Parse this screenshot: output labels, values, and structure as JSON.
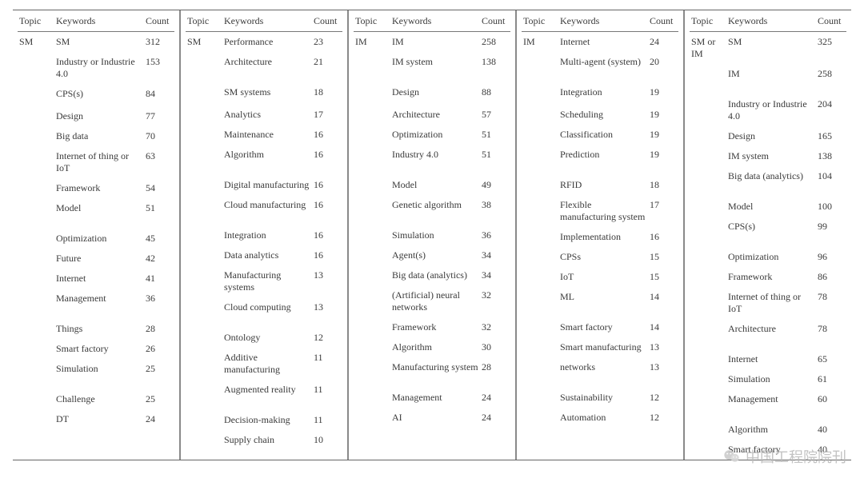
{
  "headers": {
    "topic": "Topic",
    "keywords": "Keywords",
    "count": "Count"
  },
  "style": {
    "background_color": "#ffffff",
    "text_color": "#3a3a3a",
    "rule_color": "#666666",
    "divider_color": "#8a8a8a",
    "font_family": "Times New Roman",
    "font_size_pt": 9
  },
  "columns": [
    {
      "topic": "SM",
      "rows": [
        {
          "k": "SM",
          "c": 312
        },
        {
          "k": "Industry or Industrie 4.0",
          "c": 153
        },
        {
          "k": "CPS(s)",
          "c": 84
        },
        {
          "k": "Design",
          "c": 77
        },
        {
          "k": "Big data",
          "c": 70
        },
        {
          "k": "Internet of thing or IoT",
          "c": 63
        },
        {
          "k": "Framework",
          "c": 54
        },
        {
          "k": "Model",
          "c": 51
        },
        {
          "k": "Optimization",
          "c": 45
        },
        {
          "k": "Future",
          "c": 42
        },
        {
          "k": "Internet",
          "c": 41
        },
        {
          "k": "Management",
          "c": 36
        },
        {
          "k": "Things",
          "c": 28
        },
        {
          "k": "Smart factory",
          "c": 26
        },
        {
          "k": "Simulation",
          "c": 25
        },
        {
          "k": "Challenge",
          "c": 25
        },
        {
          "k": "DT",
          "c": 24
        }
      ]
    },
    {
      "topic": "SM",
      "rows": [
        {
          "k": "Performance",
          "c": 23
        },
        {
          "k": "Architecture",
          "c": 21
        },
        {
          "k": "SM systems",
          "c": 18
        },
        {
          "k": "Analytics",
          "c": 17
        },
        {
          "k": "Maintenance",
          "c": 16
        },
        {
          "k": "Algorithm",
          "c": 16
        },
        {
          "k": "Digital manufacturing",
          "c": 16
        },
        {
          "k": "Cloud manufacturing",
          "c": 16
        },
        {
          "k": "Integration",
          "c": 16
        },
        {
          "k": "Data analytics",
          "c": 16
        },
        {
          "k": "Manufacturing systems",
          "c": 13
        },
        {
          "k": "Cloud computing",
          "c": 13
        },
        {
          "k": "Ontology",
          "c": 12
        },
        {
          "k": "Additive manufacturing",
          "c": 11
        },
        {
          "k": "Augmented reality",
          "c": 11
        },
        {
          "k": "Decision-making",
          "c": 11
        },
        {
          "k": "Supply chain",
          "c": 10
        }
      ]
    },
    {
      "topic": "IM",
      "rows": [
        {
          "k": "IM",
          "c": 258
        },
        {
          "k": "IM system",
          "c": 138
        },
        {
          "k": "Design",
          "c": 88
        },
        {
          "k": "Architecture",
          "c": 57
        },
        {
          "k": "Optimization",
          "c": 51
        },
        {
          "k": "Industry 4.0",
          "c": 51
        },
        {
          "k": "Model",
          "c": 49
        },
        {
          "k": "Genetic algorithm",
          "c": 38
        },
        {
          "k": "Simulation",
          "c": 36
        },
        {
          "k": "Agent(s)",
          "c": 34
        },
        {
          "k": "Big data (analytics)",
          "c": 34
        },
        {
          "k": "(Artificial) neural networks",
          "c": 32
        },
        {
          "k": "Framework",
          "c": 32
        },
        {
          "k": "Algorithm",
          "c": 30
        },
        {
          "k": "Manufacturing system",
          "c": 28
        },
        {
          "k": "Management",
          "c": 24
        },
        {
          "k": "AI",
          "c": 24
        }
      ]
    },
    {
      "topic": "IM",
      "rows": [
        {
          "k": "Internet",
          "c": 24
        },
        {
          "k": "Multi-agent (system)",
          "c": 20
        },
        {
          "k": "Integration",
          "c": 19
        },
        {
          "k": "Scheduling",
          "c": 19
        },
        {
          "k": "Classification",
          "c": 19
        },
        {
          "k": "Prediction",
          "c": 19
        },
        {
          "k": "RFID",
          "c": 18
        },
        {
          "k": "Flexible manufacturing system",
          "c": 17
        },
        {
          "k": "Implementation",
          "c": 16
        },
        {
          "k": "CPSs",
          "c": 15
        },
        {
          "k": "IoT",
          "c": 15
        },
        {
          "k": "ML",
          "c": 14
        },
        {
          "k": "Smart factory",
          "c": 14
        },
        {
          "k": "Smart manufacturing",
          "c": 13
        },
        {
          "k": "networks",
          "c": 13
        },
        {
          "k": "Sustainability",
          "c": 12
        },
        {
          "k": "Automation",
          "c": 12
        }
      ]
    },
    {
      "topic": "SM or IM",
      "rows": [
        {
          "k": "SM",
          "c": 325
        },
        {
          "k": "IM",
          "c": 258
        },
        {
          "k": "Industry or Industrie 4.0",
          "c": 204
        },
        {
          "k": "Design",
          "c": 165
        },
        {
          "k": "IM system",
          "c": 138
        },
        {
          "k": "Big data (analytics)",
          "c": 104
        },
        {
          "k": "Model",
          "c": 100
        },
        {
          "k": "CPS(s)",
          "c": 99
        },
        {
          "k": "Optimization",
          "c": 96
        },
        {
          "k": "Framework",
          "c": 86
        },
        {
          "k": "Internet of thing or IoT",
          "c": 78
        },
        {
          "k": "Architecture",
          "c": 78
        },
        {
          "k": "Internet",
          "c": 65
        },
        {
          "k": "Simulation",
          "c": 61
        },
        {
          "k": "Management",
          "c": 60
        },
        {
          "k": "Algorithm",
          "c": 40
        },
        {
          "k": "Smart factory",
          "c": 40
        }
      ]
    }
  ],
  "row_align": {
    "_comment": "visual top offsets (px) for each body row to preserve cross-column row alignment seen in the screenshot",
    "tops": [
      0,
      24,
      62,
      90,
      114,
      138,
      176,
      200,
      238,
      262,
      286,
      310,
      348,
      372,
      396,
      434,
      458,
      482
    ]
  },
  "watermark": {
    "text": "中国工程院院刊",
    "color": "#b9b9b9"
  }
}
